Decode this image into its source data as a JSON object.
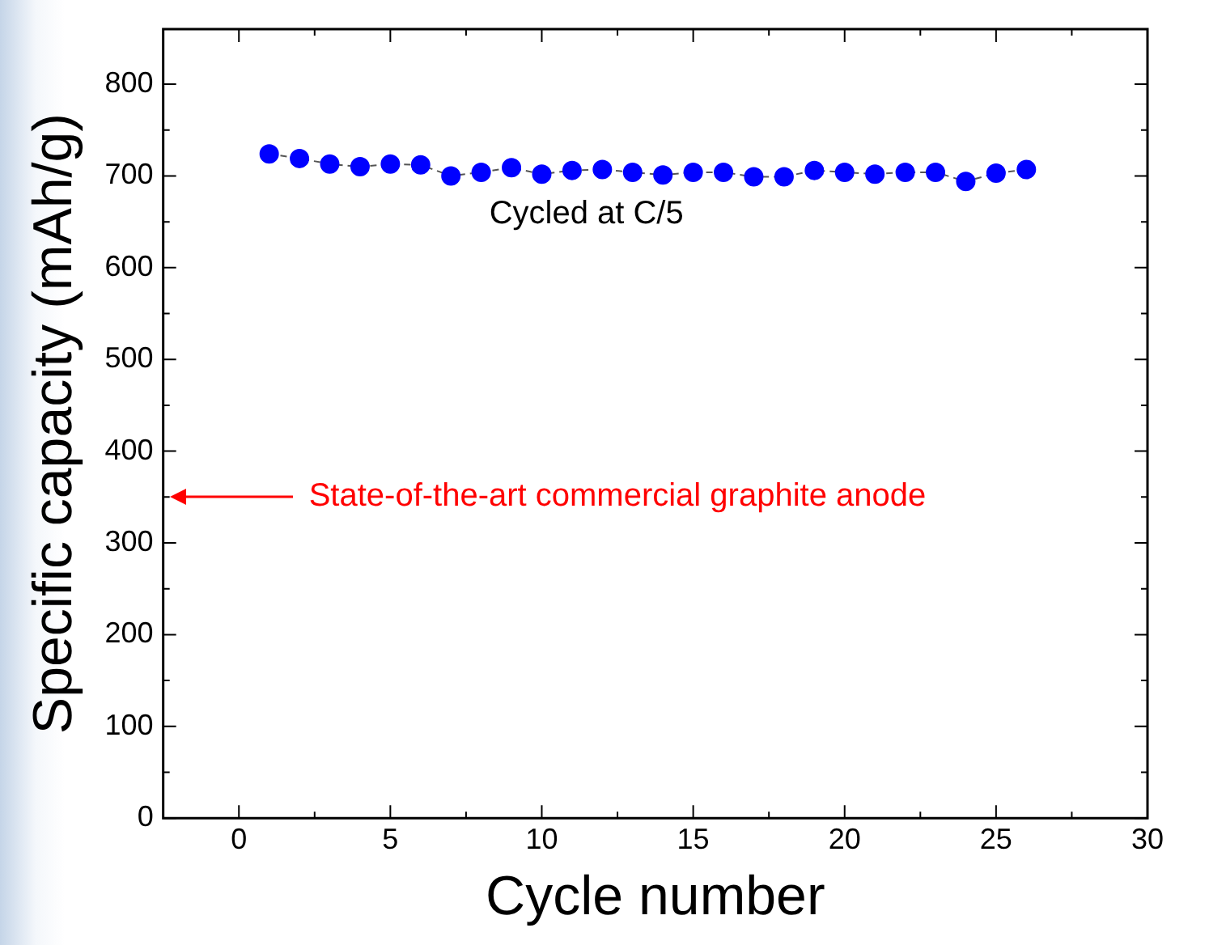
{
  "chart_data": {
    "type": "line",
    "xlabel": "Cycle number",
    "ylabel": "Specific capacity (mAh/g)",
    "x": [
      1,
      2,
      3,
      4,
      5,
      6,
      7,
      8,
      9,
      10,
      11,
      12,
      13,
      14,
      15,
      16,
      17,
      18,
      19,
      20,
      21,
      22,
      23,
      24,
      25,
      26
    ],
    "series": [
      {
        "color": "#0000ff",
        "values": [
          724,
          719,
          713,
          710,
          713,
          712,
          700,
          704,
          709,
          702,
          706,
          707,
          704,
          701,
          704,
          704,
          699,
          699,
          706,
          704,
          702,
          704,
          704,
          694,
          703,
          707
        ]
      }
    ],
    "xlim": [
      -2.5,
      30
    ],
    "xticks": [
      0,
      5,
      10,
      15,
      20,
      25,
      30
    ],
    "ylim": [
      0,
      860
    ],
    "yticks": [
      0,
      100,
      200,
      300,
      400,
      500,
      600,
      700,
      800
    ],
    "marker": "circle",
    "line_style": "dashed",
    "grid": false,
    "legend": false,
    "annotations": [
      "Cycled at C/5",
      "State-of-the-art commercial graphite anode"
    ]
  }
}
